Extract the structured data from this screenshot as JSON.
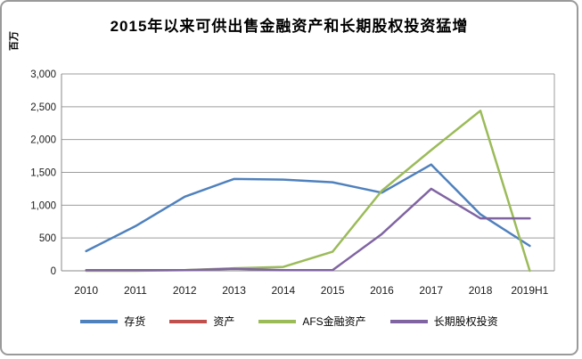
{
  "chart_data": {
    "type": "line",
    "title": "2015年以来可供出售金融资产和长期股权投资猛增",
    "ylabel": "百万",
    "xlabel": "",
    "categories": [
      "2010",
      "2011",
      "2012",
      "2013",
      "2014",
      "2015",
      "2016",
      "2017",
      "2018",
      "2019H1"
    ],
    "y_ticks": [
      "0",
      "500",
      "1,000",
      "1,500",
      "2,000",
      "2,500",
      "3,000"
    ],
    "ylim": [
      0,
      3000
    ],
    "grid": true,
    "legend_position": "bottom",
    "series": [
      {
        "name": "存货",
        "color": "#4F81BD",
        "values": [
          300,
          680,
          1130,
          1400,
          1390,
          1350,
          1190,
          1620,
          860,
          380
        ]
      },
      {
        "name": "资产",
        "color": "#C0504D",
        "values": []
      },
      {
        "name": "AFS金融资产",
        "color": "#9BBB59",
        "values": [
          0,
          0,
          10,
          40,
          60,
          290,
          1220,
          1840,
          2440,
          0
        ]
      },
      {
        "name": "长期股权投资",
        "color": "#8064A2",
        "values": [
          10,
          10,
          10,
          30,
          10,
          10,
          560,
          1250,
          800,
          800
        ]
      }
    ]
  },
  "colors": {
    "gridline": "#9c9c9c",
    "axis": "#8a8a8a",
    "tick_text": "#1a1a1a"
  }
}
